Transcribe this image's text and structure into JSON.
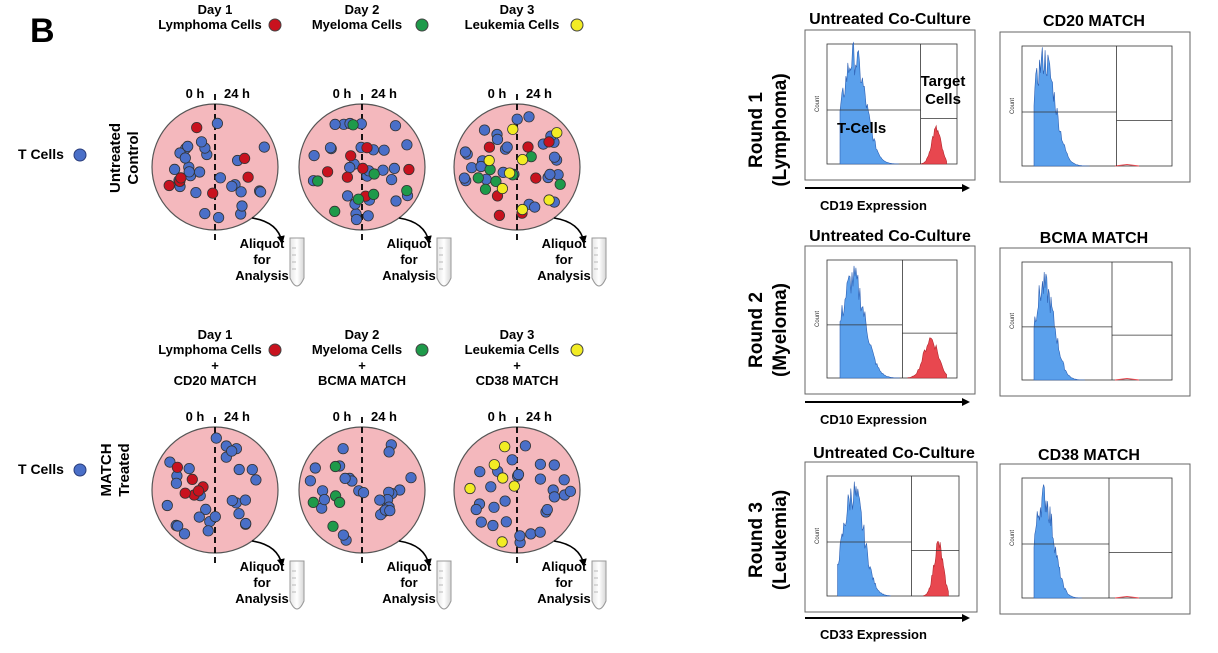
{
  "panel_letter": "B",
  "colors": {
    "t_cell": "#4a6fc8",
    "lymphoma": "#c8121e",
    "myeloma": "#1e9a4a",
    "leukemia": "#f2ec24",
    "dish": "#f4b8bd",
    "histo_blue": "#5aa0ec",
    "histo_red": "#e8474f"
  },
  "diagram": {
    "t_cells_label": "T Cells",
    "time_0": "0 h",
    "time_24": "24 h",
    "aliquot_line1": "Aliquot",
    "aliquot_line2": "for",
    "aliquot_line3": "Analysis",
    "rows": [
      {
        "row_label_1": "Untreated",
        "row_label_2": "Control",
        "days": [
          {
            "day": "Day 1",
            "cells": "Lymphoma Cells",
            "plus": "",
            "treatment": "",
            "dot": "lymphoma"
          },
          {
            "day": "Day 2",
            "cells": "Myeloma Cells",
            "plus": "",
            "treatment": "",
            "dot": "myeloma"
          },
          {
            "day": "Day 3",
            "cells": "Leukemia Cells",
            "plus": "",
            "treatment": "",
            "dot": "leukemia"
          }
        ]
      },
      {
        "row_label_1": "MATCH",
        "row_label_2": "Treated",
        "days": [
          {
            "day": "Day 1",
            "cells": "Lymphoma Cells",
            "plus": "+",
            "treatment": "CD20 MATCH",
            "dot": "lymphoma"
          },
          {
            "day": "Day 2",
            "cells": "Myeloma Cells",
            "plus": "+",
            "treatment": "BCMA MATCH",
            "dot": "myeloma"
          },
          {
            "day": "Day 3",
            "cells": "Leukemia Cells",
            "plus": "+",
            "treatment": "CD38 MATCH",
            "dot": "leukemia"
          }
        ]
      }
    ]
  },
  "histograms": {
    "untreated_title": "Untreated Co-Culture",
    "count_label": "Count",
    "rounds": [
      {
        "round": "Round 1",
        "disease": "(Lymphoma)",
        "treated_title": "CD20 MATCH",
        "axis_label": "CD19 Expression",
        "annotation_tcells": "T-Cells",
        "annotation_target_1": "Target",
        "annotation_target_2": "Cells"
      },
      {
        "round": "Round 2",
        "disease": "(Myeloma)",
        "treated_title": "BCMA MATCH",
        "axis_label": "CD10 Expression",
        "annotation_tcells": "",
        "annotation_target_1": "",
        "annotation_target_2": ""
      },
      {
        "round": "Round 3",
        "disease": "(Leukemia)",
        "treated_title": "CD38 MATCH",
        "axis_label": "CD33 Expression",
        "annotation_tcells": "",
        "annotation_target_1": "",
        "annotation_target_2": ""
      }
    ]
  }
}
